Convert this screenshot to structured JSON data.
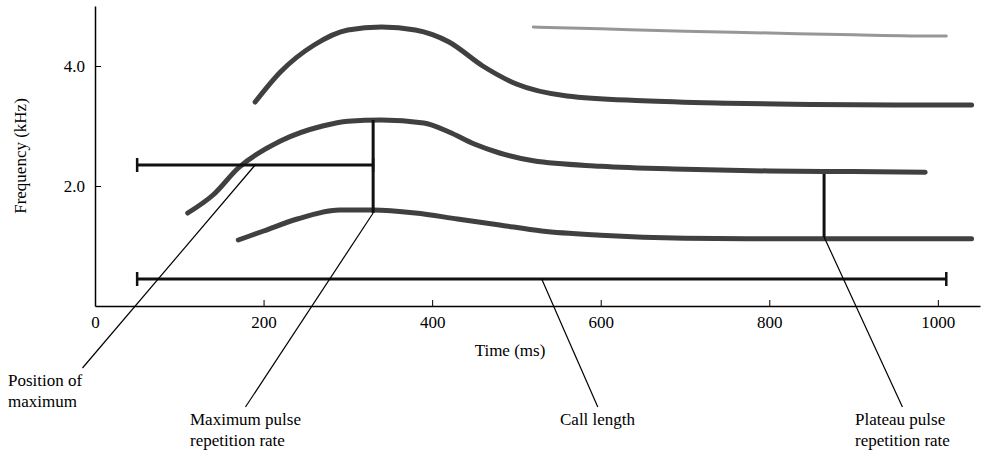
{
  "chart_data": {
    "type": "line",
    "x_label": "Time (ms)",
    "y_label": "Frequency (kHz)",
    "xlim": [
      0,
      1050
    ],
    "xticks": [
      0,
      200,
      400,
      600,
      800,
      1000
    ],
    "ylim": [
      0,
      5
    ],
    "yticks": [
      {
        "value": 2,
        "label": "2.0"
      },
      {
        "value": 4,
        "label": "4.0"
      }
    ],
    "grid": false,
    "series": [
      {
        "color": "#2b2b2b",
        "x": [
          170,
          200,
          240,
          290,
          330,
          380,
          430,
          480,
          530,
          600,
          700,
          800,
          900,
          1000,
          1040
        ],
        "values": [
          1.1,
          1.25,
          1.45,
          1.6,
          1.6,
          1.55,
          1.45,
          1.35,
          1.25,
          1.18,
          1.13,
          1.12,
          1.12,
          1.12,
          1.12
        ]
      },
      {
        "color": "#2b2b2b",
        "x": [
          110,
          140,
          170,
          220,
          270,
          300,
          340,
          390,
          420,
          450,
          480,
          520,
          600,
          700,
          800,
          900,
          985
        ],
        "values": [
          1.55,
          1.85,
          2.3,
          2.75,
          3.0,
          3.08,
          3.1,
          3.05,
          2.9,
          2.7,
          2.55,
          2.42,
          2.33,
          2.28,
          2.25,
          2.24,
          2.23
        ]
      },
      {
        "color": "#2b2b2b",
        "x": [
          190,
          220,
          260,
          300,
          340,
          380,
          420,
          460,
          500,
          560,
          650,
          750,
          850,
          950,
          1040
        ],
        "values": [
          3.4,
          3.9,
          4.35,
          4.6,
          4.65,
          4.6,
          4.4,
          4.0,
          3.7,
          3.5,
          3.42,
          3.38,
          3.36,
          3.35,
          3.35
        ]
      },
      {
        "color": "#8c8c8c",
        "x": [
          520,
          600,
          700,
          800,
          900,
          1000,
          1010
        ],
        "values": [
          4.65,
          4.62,
          4.58,
          4.55,
          4.52,
          4.5,
          4.5
        ]
      }
    ],
    "annotations": [
      {
        "text": "Position of maximum",
        "x": [
          50,
          330
        ],
        "y": [
          2.35,
          2.35
        ]
      },
      {
        "text": "Maximum pulse repetition rate",
        "x": [
          330,
          330
        ],
        "y": [
          1.55,
          3.1
        ]
      },
      {
        "text": "Call length",
        "x": [
          50,
          1010
        ],
        "y": [
          0.45,
          0.45
        ]
      },
      {
        "text": "Plateau pulse repetition rate",
        "x": [
          865,
          865
        ],
        "y": [
          1.15,
          2.2
        ]
      }
    ]
  }
}
